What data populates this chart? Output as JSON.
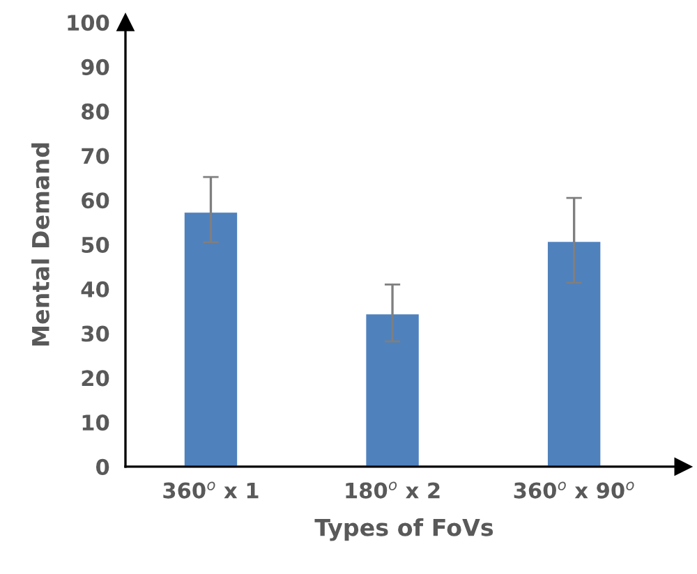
{
  "chart_data": {
    "type": "bar",
    "xlabel": "Types of FoVs",
    "ylabel": "Mental Demand",
    "categories": [
      "360$^{o}$ x 1",
      "180$^{o}$ x 2",
      "360$^{o}$ x 90$^{o}$"
    ],
    "values": [
      57.4,
      34.5,
      50.8
    ],
    "color": "#4f81bd",
    "errors": [
      [
        50.5,
        65.2
      ],
      [
        28.2,
        41.0
      ],
      [
        41.4,
        60.5
      ]
    ],
    "ylim": [
      0,
      100
    ],
    "yticks": [
      0,
      10,
      20,
      30,
      40,
      50,
      60,
      70,
      80,
      90,
      100
    ],
    "grid": false,
    "legend": false
  }
}
